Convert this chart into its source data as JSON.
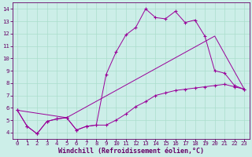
{
  "xlabel": "Windchill (Refroidissement éolien,°C)",
  "background_color": "#cceee8",
  "grid_color": "#aaddcc",
  "line_color": "#990099",
  "spine_color": "#660066",
  "xlim": [
    -0.5,
    23.5
  ],
  "ylim": [
    3.5,
    14.5
  ],
  "yticks": [
    4,
    5,
    6,
    7,
    8,
    9,
    10,
    11,
    12,
    13,
    14
  ],
  "xticks": [
    0,
    1,
    2,
    3,
    4,
    5,
    6,
    7,
    8,
    9,
    10,
    11,
    12,
    13,
    14,
    15,
    16,
    17,
    18,
    19,
    20,
    21,
    22,
    23
  ],
  "line1_x": [
    0,
    1,
    2,
    3,
    4,
    5,
    6,
    7,
    8,
    9,
    10,
    11,
    12,
    13,
    14,
    15,
    16,
    17,
    18,
    19,
    20,
    21,
    22,
    23
  ],
  "line1_y": [
    5.8,
    4.5,
    3.9,
    4.9,
    5.1,
    5.2,
    4.2,
    4.5,
    4.6,
    4.6,
    5.0,
    5.5,
    6.1,
    6.5,
    7.0,
    7.2,
    7.4,
    7.5,
    7.6,
    7.7,
    7.8,
    7.9,
    7.7,
    7.5
  ],
  "line2_x": [
    0,
    1,
    2,
    3,
    4,
    5,
    6,
    7,
    8,
    9,
    10,
    11,
    12,
    13,
    14,
    15,
    16,
    17,
    18,
    19,
    20,
    21,
    22,
    23
  ],
  "line2_y": [
    5.8,
    4.5,
    3.9,
    4.9,
    5.1,
    5.2,
    4.2,
    4.5,
    4.6,
    8.7,
    10.5,
    11.9,
    12.5,
    14.0,
    13.3,
    13.2,
    13.8,
    12.9,
    13.1,
    11.8,
    9.0,
    8.8,
    7.8,
    7.5
  ],
  "line3_x": [
    0,
    5,
    20,
    23
  ],
  "line3_y": [
    5.8,
    5.2,
    11.8,
    7.5
  ],
  "tick_fontsize": 5.2,
  "xlabel_fontsize": 6.0
}
